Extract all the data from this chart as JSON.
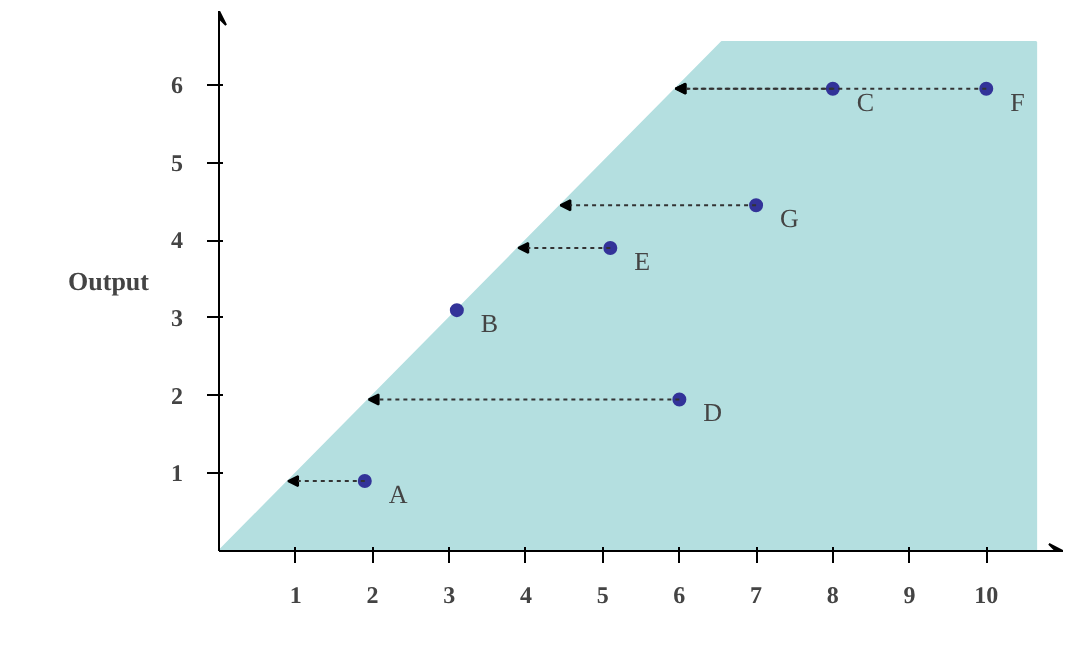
{
  "chart_data": {
    "type": "scatter",
    "ylabel": "Output",
    "series": [
      {
        "type": "area",
        "x": [
          0,
          6.55,
          10.65
        ],
        "values": [
          0,
          6.55,
          6.55
        ],
        "color": "#b4dfe0"
      },
      {
        "type": "scatter",
        "marker": "circle",
        "x": [
          1.9,
          3.1,
          8.0,
          6.0,
          5.1,
          10.0,
          7.0
        ],
        "values": [
          0.9,
          3.1,
          5.95,
          1.95,
          3.9,
          5.95,
          4.45
        ],
        "color": "#333399"
      }
    ],
    "annotations": [
      {
        "text": "A",
        "x": 1.9,
        "y": 0.9
      },
      {
        "text": "B",
        "x": 3.1,
        "y": 3.1
      },
      {
        "text": "C",
        "x": 8.0,
        "y": 5.95
      },
      {
        "text": "D",
        "x": 6.0,
        "y": 1.95
      },
      {
        "text": "E",
        "x": 5.1,
        "y": 3.9
      },
      {
        "text": "F",
        "x": 10.0,
        "y": 5.95
      },
      {
        "text": "G",
        "x": 7.0,
        "y": 4.45
      }
    ],
    "xlim": [
      0,
      11
    ],
    "ylim": [
      0,
      6.95
    ],
    "xticks": [
      1,
      2,
      3,
      4,
      5,
      6,
      7,
      8,
      9,
      10
    ],
    "yticks": [
      1,
      2,
      3,
      4,
      5,
      6
    ],
    "grid": false
  }
}
